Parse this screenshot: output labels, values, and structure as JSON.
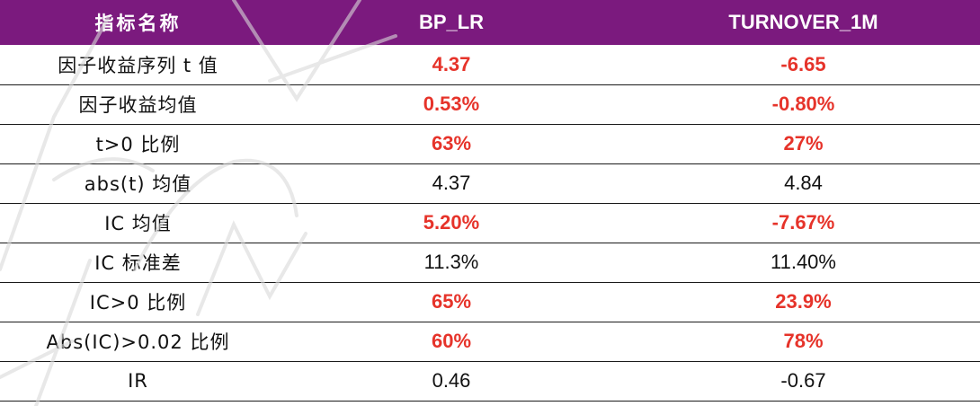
{
  "table": {
    "headers": [
      "指标名称",
      "BP_LR",
      "TURNOVER_1M"
    ],
    "rows": [
      {
        "name": "因子收益序列 t 值",
        "bp_lr": "4.37",
        "turnover_1m": "-6.65",
        "bp_lr_highlight": true,
        "turnover_1m_highlight": true
      },
      {
        "name": "因子收益均值",
        "bp_lr": "0.53%",
        "turnover_1m": "-0.80%",
        "bp_lr_highlight": true,
        "turnover_1m_highlight": true
      },
      {
        "name": "t>0  比例",
        "bp_lr": "63%",
        "turnover_1m": "27%",
        "bp_lr_highlight": true,
        "turnover_1m_highlight": true
      },
      {
        "name": "abs(t)  均值",
        "bp_lr": "4.37",
        "turnover_1m": "4.84",
        "bp_lr_highlight": false,
        "turnover_1m_highlight": false
      },
      {
        "name": "IC  均值",
        "bp_lr": "5.20%",
        "turnover_1m": "-7.67%",
        "bp_lr_highlight": true,
        "turnover_1m_highlight": true
      },
      {
        "name": "IC  标准差",
        "bp_lr": "11.3%",
        "turnover_1m": "11.40%",
        "bp_lr_highlight": false,
        "turnover_1m_highlight": false
      },
      {
        "name": "IC>0  比例",
        "bp_lr": "65%",
        "turnover_1m": "23.9%",
        "bp_lr_highlight": true,
        "turnover_1m_highlight": true
      },
      {
        "name": "Abs(IC)>0.02  比例",
        "bp_lr": "60%",
        "turnover_1m": "78%",
        "bp_lr_highlight": true,
        "turnover_1m_highlight": true
      },
      {
        "name": "IR",
        "bp_lr": "0.46",
        "turnover_1m": "-0.67",
        "bp_lr_highlight": false,
        "turnover_1m_highlight": false
      }
    ]
  },
  "colors": {
    "header_bg": "#7b1a7e",
    "header_text": "#ffffff",
    "highlight": "#e6332a",
    "normal_text": "#111111"
  }
}
